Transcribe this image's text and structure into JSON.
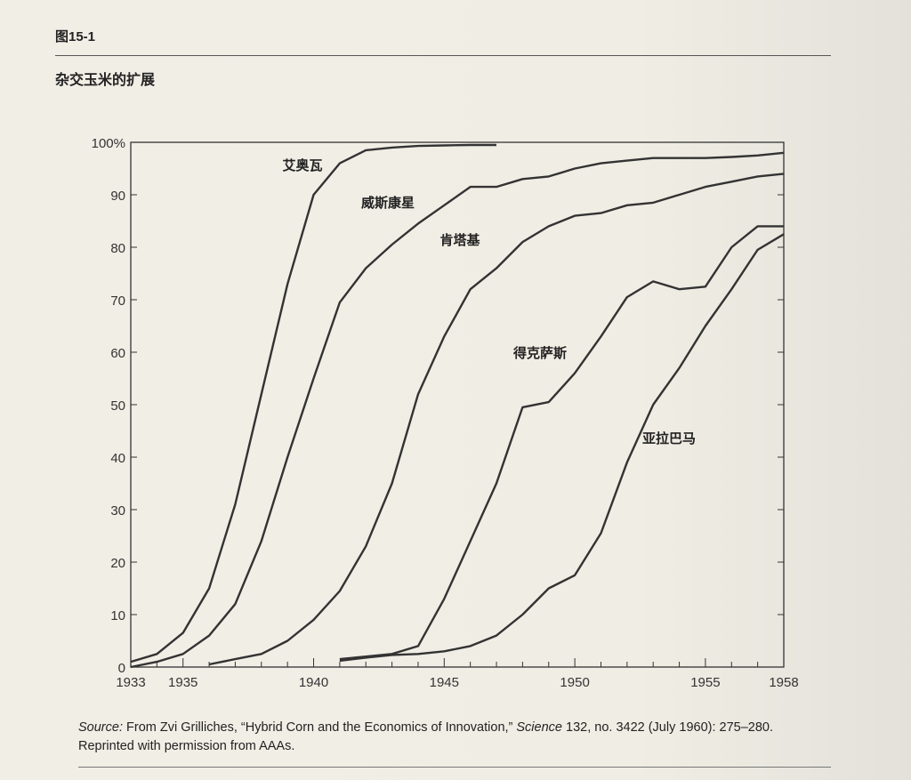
{
  "figure_number": "图15-1",
  "figure_title": "杂交玉米的扩展",
  "source": {
    "label": "Source:",
    "text_before": " From Zvi Grilliches, “Hybrid Corn and the Economics of Innovation,” ",
    "journal": "Science",
    "text_after": " 132, no. 3422 (July 1960): 275–280. Reprinted with permission from AAAs."
  },
  "chart_data": {
    "type": "line",
    "title": "杂交玉米的扩展",
    "xlabel": "",
    "ylabel": "",
    "xlim": [
      1933,
      1958
    ],
    "ylim": [
      0,
      100
    ],
    "x_tick_labels": [
      "1933",
      "1935",
      "1940",
      "1945",
      "1950",
      "1955",
      "1958"
    ],
    "y_tick_labels": [
      "0",
      "10",
      "20",
      "30",
      "40",
      "50",
      "60",
      "70",
      "80",
      "90",
      "100%"
    ],
    "grid": false,
    "line_color": "#333333",
    "series": [
      {
        "name": "艾奥瓦",
        "x": [
          1933,
          1934,
          1935,
          1936,
          1937,
          1938,
          1939,
          1940,
          1941,
          1942,
          1943,
          1944,
          1945,
          1946,
          1947
        ],
        "y": [
          1,
          2.5,
          6.5,
          15,
          31,
          52,
          73,
          90,
          96,
          98.5,
          99,
          99.3,
          99.4,
          99.5,
          99.5
        ]
      },
      {
        "name": "威斯康星",
        "x": [
          1933,
          1934,
          1935,
          1936,
          1937,
          1938,
          1939,
          1940,
          1941,
          1942,
          1943,
          1944,
          1945,
          1946,
          1947,
          1948,
          1949,
          1950,
          1951,
          1952,
          1953,
          1954,
          1955,
          1956,
          1957,
          1958
        ],
        "y": [
          0,
          1,
          2.5,
          6,
          12,
          24,
          40,
          55,
          69.5,
          76,
          80.5,
          84.5,
          88,
          91.5,
          91.5,
          93,
          93.5,
          95,
          96,
          96.5,
          97,
          97,
          97,
          97.2,
          97.5,
          98
        ]
      },
      {
        "name": "肯塔基",
        "x": [
          1936,
          1937,
          1938,
          1939,
          1940,
          1941,
          1942,
          1943,
          1944,
          1945,
          1946,
          1947,
          1948,
          1949,
          1950,
          1951,
          1952,
          1953,
          1954,
          1955,
          1956,
          1957,
          1958
        ],
        "y": [
          0.5,
          1.5,
          2.5,
          5,
          9,
          14.5,
          23,
          35,
          52,
          63,
          72,
          76,
          81,
          84,
          86,
          86.5,
          88,
          88.5,
          90,
          91.5,
          92.5,
          93.5,
          94
        ]
      },
      {
        "name": "得克萨斯",
        "x": [
          1941,
          1942,
          1943,
          1944,
          1945,
          1946,
          1947,
          1948,
          1949,
          1950,
          1951,
          1952,
          1953,
          1954,
          1955,
          1956,
          1957,
          1958
        ],
        "y": [
          1.5,
          2,
          2.5,
          4,
          13,
          24,
          35,
          49.5,
          50.5,
          56,
          63,
          70.5,
          73.5,
          72,
          72.5,
          80,
          84,
          84
        ]
      },
      {
        "name": "亚拉巴马",
        "x": [
          1941,
          1942,
          1943,
          1944,
          1945,
          1946,
          1947,
          1948,
          1949,
          1950,
          1951,
          1952,
          1953,
          1954,
          1955,
          1956,
          1957,
          1958
        ],
        "y": [
          1.2,
          1.8,
          2.3,
          2.5,
          3,
          4,
          6,
          10,
          15,
          17.5,
          25.5,
          39,
          50,
          57,
          65,
          72,
          79.5,
          82.5
        ]
      }
    ]
  }
}
